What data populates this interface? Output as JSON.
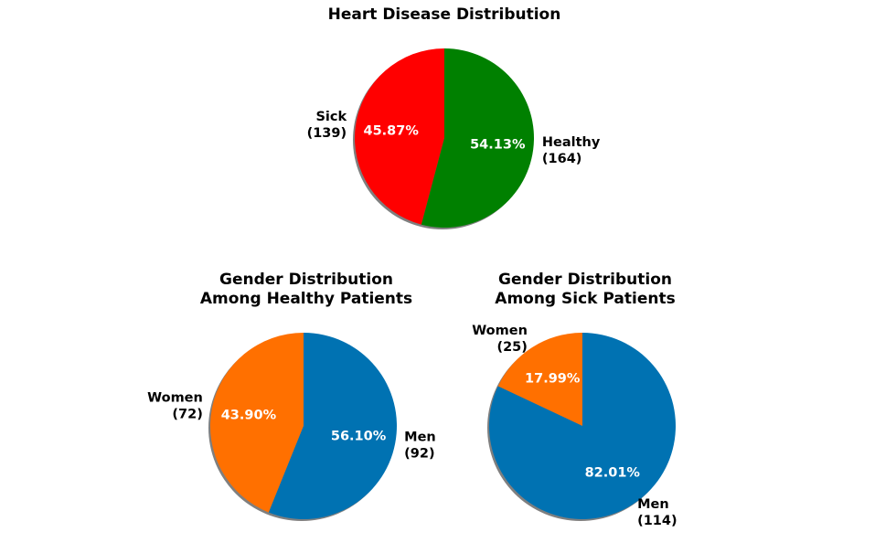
{
  "chart_data": [
    {
      "type": "pie",
      "title": "Heart Disease Distribution",
      "title_lines": [
        "Heart Disease Distribution"
      ],
      "start_angle_deg": 90,
      "direction": "counterclockwise",
      "shadow": true,
      "slices": [
        {
          "label": "Sick",
          "count": 139,
          "percent": 45.87,
          "pct_text": "45.87%",
          "label_lines": [
            "Sick",
            "(139)"
          ],
          "color": "#ff0000"
        },
        {
          "label": "Healthy",
          "count": 164,
          "percent": 54.13,
          "pct_text": "54.13%",
          "label_lines": [
            "Healthy",
            "(164)"
          ],
          "color": "#008000"
        }
      ]
    },
    {
      "type": "pie",
      "title": "Gender Distribution Among Healthy Patients",
      "title_lines": [
        "Gender Distribution",
        "Among Healthy Patients"
      ],
      "start_angle_deg": 90,
      "direction": "counterclockwise",
      "shadow": true,
      "slices": [
        {
          "label": "Women",
          "count": 72,
          "percent": 43.9,
          "pct_text": "43.90%",
          "label_lines": [
            "Women",
            "(72)"
          ],
          "color": "#ff7000"
        },
        {
          "label": "Men",
          "count": 92,
          "percent": 56.1,
          "pct_text": "56.10%",
          "label_lines": [
            "Men",
            "(92)"
          ],
          "color": "#0072b2"
        }
      ]
    },
    {
      "type": "pie",
      "title": "Gender Distribution Among Sick Patients",
      "title_lines": [
        "Gender Distribution",
        "Among Sick Patients"
      ],
      "start_angle_deg": 90,
      "direction": "counterclockwise",
      "shadow": true,
      "slices": [
        {
          "label": "Women",
          "count": 25,
          "percent": 17.99,
          "pct_text": "17.99%",
          "label_lines": [
            "Women",
            "(25)"
          ],
          "color": "#ff7000"
        },
        {
          "label": "Men",
          "count": 114,
          "percent": 82.01,
          "pct_text": "82.01%",
          "label_lines": [
            "Men",
            "(114)"
          ],
          "color": "#0072b2"
        }
      ]
    }
  ]
}
